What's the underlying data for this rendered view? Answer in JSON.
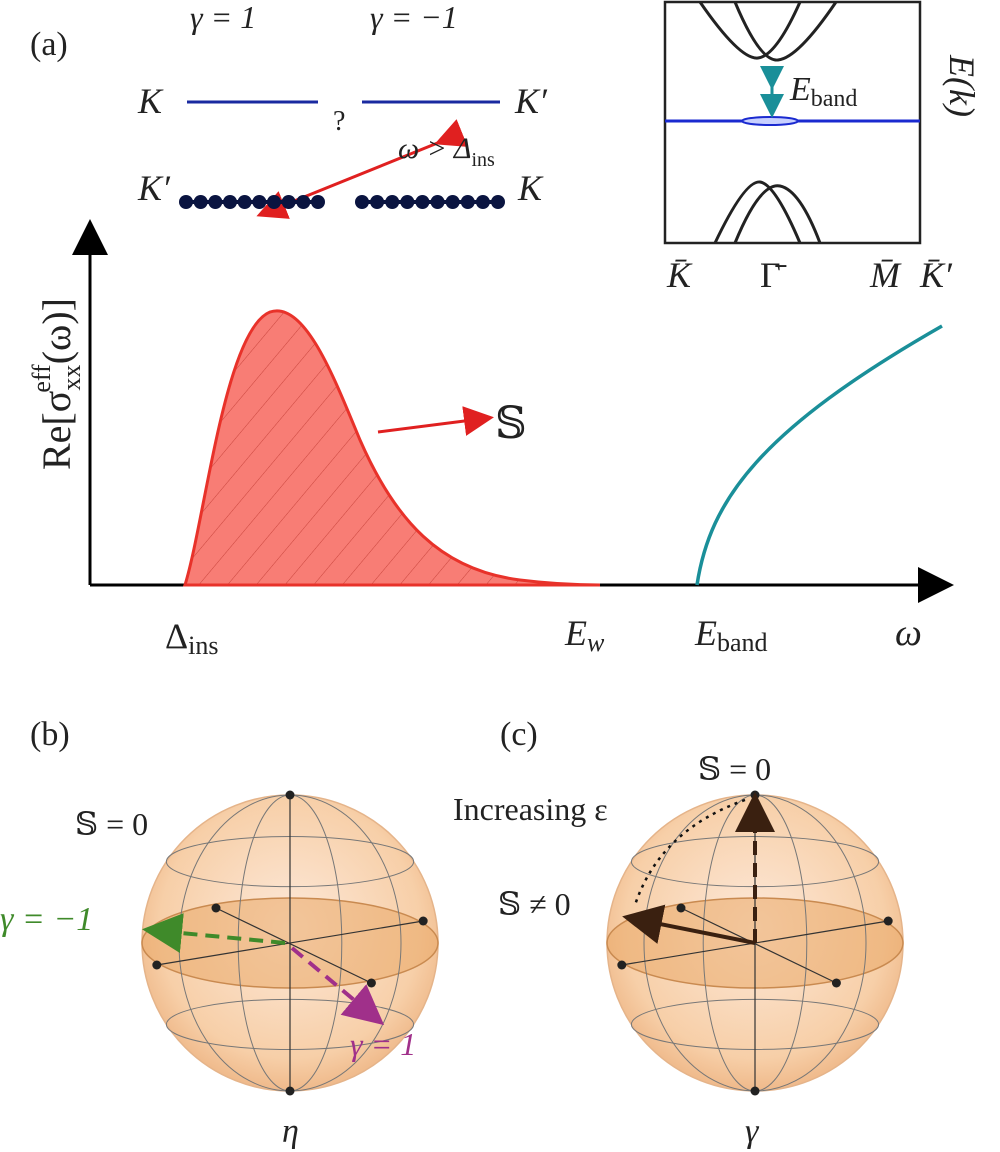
{
  "panel_a": {
    "label": "(a)",
    "gamma_plus": "γ = 1",
    "gamma_minus": "γ = −1",
    "K_top_left": "K",
    "Kp_top_right": "K′",
    "question": "?",
    "transition_omega": "ω > Δ",
    "transition_sub": "ins",
    "Kp_bottom_left": "K′",
    "K_bottom_right": "K",
    "inset": {
      "eband": "E",
      "eband_sub": "band",
      "ylabel": "E(k)",
      "ticks": [
        "K̄",
        "Γ̄",
        "M̄",
        "K̄′"
      ]
    },
    "ylabel_main": "Re[σ",
    "ylabel_sub": "xx",
    "ylabel_sup": "eff",
    "ylabel_end": "(ω)]",
    "S_label": "𝕊",
    "xticks": {
      "delta": "Δ",
      "delta_sub": "ins",
      "ew": "E",
      "ew_sub": "w",
      "eband": "E",
      "eband_sub": "band",
      "omega": "ω"
    },
    "colors": {
      "peak": "#e8322a",
      "peak_fill": "#f87d75",
      "band": "#1a8f99",
      "flat_band": "#1a2ad0"
    }
  },
  "panel_b": {
    "label": "(b)",
    "S_zero": "𝕊 = 0",
    "gamma_minus": "γ = −1",
    "gamma_plus": "γ = 1",
    "axis": "η⃗"
  },
  "panel_c": {
    "label": "(c)",
    "S_zero": "𝕊 = 0",
    "increasing": "Increasing ε",
    "S_nonzero": "𝕊 ≠ 0",
    "axis": "γ⃗"
  }
}
